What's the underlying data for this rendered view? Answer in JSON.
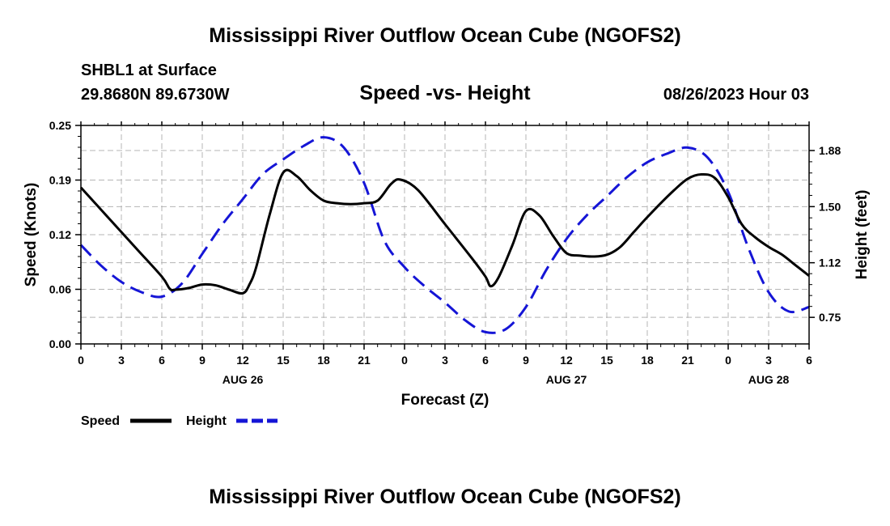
{
  "header": {
    "title": "Mississippi River Outflow Ocean Cube (NGOFS2)",
    "station": "SHBL1 at Surface",
    "coords": "29.8680N  89.6730W",
    "subtitle": "Speed -vs- Height",
    "datetime": "08/26/2023 Hour 03"
  },
  "footer": {
    "title": "Mississippi River Outflow Ocean Cube (NGOFS2)"
  },
  "colors": {
    "speed": "#000000",
    "height": "#1515d6",
    "grid": "#b4b4b4"
  },
  "chart_data": {
    "type": "line",
    "title": "Speed -vs- Height",
    "xlabel": "Forecast (Z)",
    "ylabel_left": "Speed (Knots)",
    "ylabel_right": "Height (feet)",
    "x_unit": "hours from 08/26/2023 00Z",
    "xlim": [
      0,
      54
    ],
    "ylim_left": [
      0,
      0.25
    ],
    "ylim_right": [
      0.57,
      2.05
    ],
    "x_ticks": [
      {
        "x": 0,
        "label": "0"
      },
      {
        "x": 3,
        "label": "3"
      },
      {
        "x": 6,
        "label": "6"
      },
      {
        "x": 9,
        "label": "9"
      },
      {
        "x": 12,
        "label": "12"
      },
      {
        "x": 15,
        "label": "15"
      },
      {
        "x": 18,
        "label": "18"
      },
      {
        "x": 21,
        "label": "21"
      },
      {
        "x": 24,
        "label": "0"
      },
      {
        "x": 27,
        "label": "3"
      },
      {
        "x": 30,
        "label": "6"
      },
      {
        "x": 33,
        "label": "9"
      },
      {
        "x": 36,
        "label": "12"
      },
      {
        "x": 39,
        "label": "15"
      },
      {
        "x": 42,
        "label": "18"
      },
      {
        "x": 45,
        "label": "21"
      },
      {
        "x": 48,
        "label": "0"
      },
      {
        "x": 51,
        "label": "3"
      },
      {
        "x": 54,
        "label": "6"
      }
    ],
    "date_labels": [
      {
        "x": 12,
        "label": "AUG 26"
      },
      {
        "x": 36,
        "label": "AUG 27"
      },
      {
        "x": 51,
        "label": "AUG 28"
      }
    ],
    "y_ticks_left": [
      {
        "v": 0.0,
        "label": "0.00"
      },
      {
        "v": 0.0625,
        "label": "0.06"
      },
      {
        "v": 0.125,
        "label": "0.12"
      },
      {
        "v": 0.1875,
        "label": "0.19"
      },
      {
        "v": 0.25,
        "label": "0.25"
      }
    ],
    "y_ticks_right": [
      {
        "v": 0.75,
        "label": "0.75"
      },
      {
        "v": 1.12,
        "label": "1.12"
      },
      {
        "v": 1.5,
        "label": "1.50"
      },
      {
        "v": 1.88,
        "label": "1.88"
      }
    ],
    "grid": true,
    "series": [
      {
        "name": "Speed",
        "axis": "left",
        "style": "solid",
        "x": [
          0,
          2,
          4,
          6,
          6.6,
          7,
          8,
          9,
          10,
          11,
          12,
          12.5,
          13,
          14,
          15,
          16,
          17,
          18,
          19,
          20,
          21,
          22,
          23,
          23.7,
          25,
          27,
          29,
          30,
          30.4,
          31,
          32,
          33,
          34,
          35,
          36,
          37,
          38,
          39,
          40,
          41,
          42,
          43,
          44,
          45,
          46,
          47,
          48,
          49,
          50,
          51,
          52,
          53,
          54
        ],
        "values": [
          0.179,
          0.145,
          0.111,
          0.077,
          0.063,
          0.062,
          0.064,
          0.068,
          0.067,
          0.062,
          0.058,
          0.068,
          0.088,
          0.148,
          0.196,
          0.192,
          0.176,
          0.164,
          0.161,
          0.16,
          0.161,
          0.164,
          0.183,
          0.188,
          0.176,
          0.137,
          0.098,
          0.077,
          0.066,
          0.077,
          0.113,
          0.152,
          0.147,
          0.124,
          0.104,
          0.101,
          0.1,
          0.102,
          0.111,
          0.128,
          0.145,
          0.161,
          0.176,
          0.189,
          0.194,
          0.19,
          0.168,
          0.137,
          0.122,
          0.111,
          0.102,
          0.09,
          0.078
        ]
      },
      {
        "name": "Height",
        "axis": "right",
        "style": "dashed",
        "x": [
          0,
          1.5,
          3,
          4.5,
          6,
          7.5,
          9,
          10.5,
          12,
          13.5,
          15,
          16.5,
          18,
          19.5,
          21,
          22.5,
          24,
          25.5,
          27,
          28.5,
          30,
          31.5,
          33,
          34.5,
          36,
          37.5,
          39,
          40.5,
          42,
          43.5,
          45,
          46.5,
          48,
          49.5,
          51,
          52.5,
          54
        ],
        "values": [
          1.24,
          1.1,
          0.99,
          0.92,
          0.89,
          0.98,
          1.18,
          1.38,
          1.55,
          1.72,
          1.82,
          1.91,
          1.97,
          1.9,
          1.66,
          1.27,
          1.09,
          0.96,
          0.85,
          0.73,
          0.65,
          0.67,
          0.82,
          1.07,
          1.28,
          1.44,
          1.57,
          1.7,
          1.8,
          1.86,
          1.9,
          1.83,
          1.6,
          1.22,
          0.92,
          0.79,
          0.82
        ]
      }
    ],
    "legend": {
      "placement": "bottom-left",
      "entries": [
        "Speed",
        "Height"
      ]
    }
  }
}
